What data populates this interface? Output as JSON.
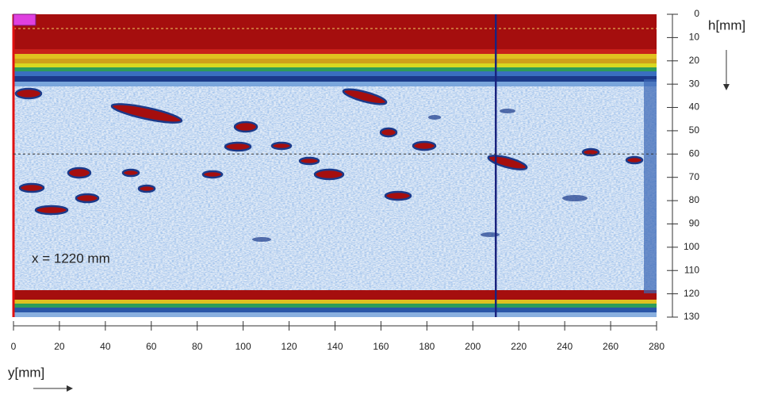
{
  "chart_data": {
    "type": "bscan",
    "annotation": "x = 1220 mm",
    "xlabel": "y[mm]",
    "ylabel": "h[mm]",
    "xlim": [
      0,
      280
    ],
    "xticks": [
      0,
      20,
      40,
      60,
      80,
      100,
      120,
      140,
      160,
      180,
      200,
      220,
      240,
      260,
      280
    ],
    "ylim": [
      0,
      130
    ],
    "yticks": [
      0,
      10,
      20,
      30,
      40,
      50,
      60,
      70,
      80,
      90,
      100,
      110,
      120,
      130
    ],
    "cursor_y": 210,
    "cursor_h": 60,
    "cursor_color": "#1a237e"
  }
}
